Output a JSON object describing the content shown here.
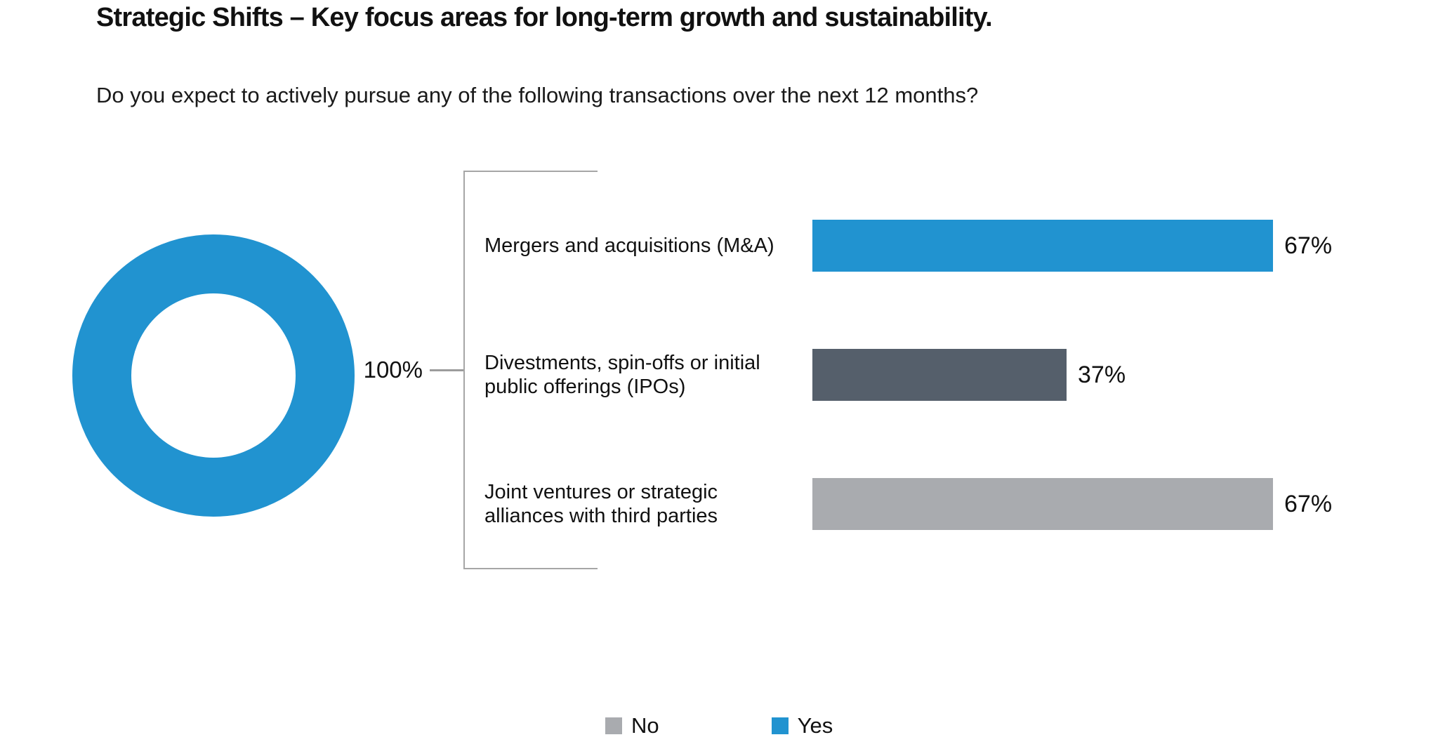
{
  "page": {
    "title": "Strategic Shifts – Key focus areas for long-term growth and sustainability.",
    "question": "Do you expect to actively pursue any of the following transactions over the next 12 months?"
  },
  "colors": {
    "yes_blue": "#2193D0",
    "no_gray": "#A9ABAF",
    "dark_slate": "#555F6B",
    "bracket_line": "#A6A6A6",
    "text": "#111111"
  },
  "donut": {
    "value_percent": 100,
    "label": "100%",
    "color": "#2193D0"
  },
  "chart_data": {
    "type": "bar",
    "orientation": "horizontal",
    "title": "Strategic Shifts – Key focus areas for long-term growth and sustainability.",
    "subtitle": "Do you expect to actively pursue any of the following transactions over the next 12 months?",
    "categories": [
      "Mergers and acquisitions (M&A)",
      "Divestments, spin-offs or initial public offerings (IPOs)",
      "Joint ventures or strategic alliances with third parties"
    ],
    "values": [
      67,
      37,
      67
    ],
    "value_labels": [
      "67%",
      "37%",
      "67%"
    ],
    "bar_colors": [
      "#2193D0",
      "#555F6B",
      "#A9ABAF"
    ],
    "xlim": [
      0,
      100
    ],
    "grid": false,
    "donut_companion": {
      "type": "pie",
      "values": [
        100
      ],
      "labels": [
        "100%"
      ],
      "colors": [
        "#2193D0"
      ]
    },
    "legend": [
      {
        "label": "No",
        "color": "#A9ABAF"
      },
      {
        "label": "Yes",
        "color": "#2193D0"
      }
    ],
    "legend_position": "bottom-center"
  },
  "legend": {
    "no_label": "No",
    "yes_label": "Yes"
  }
}
